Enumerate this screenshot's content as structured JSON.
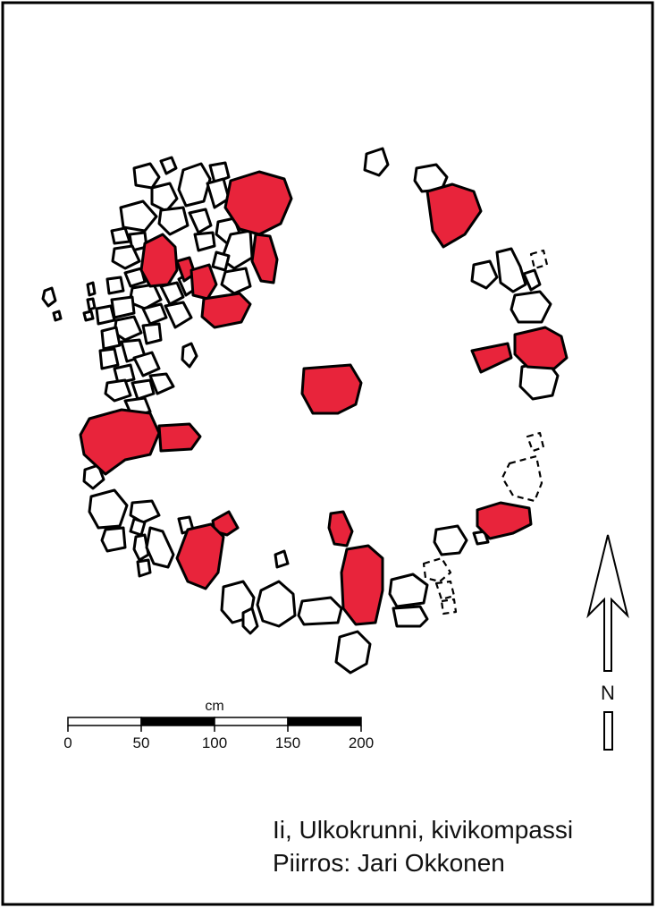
{
  "scale_bar": {
    "unit": "cm",
    "ticks": [
      "0",
      "50",
      "100",
      "150",
      "200"
    ]
  },
  "north_label": "N",
  "caption": {
    "line1": "Ii, Ulkokrunni, kivikompassi",
    "line2": "Piirros: Jari Okkonen"
  },
  "colors": {
    "highlight_stone": "#e8243b",
    "outline": "#000000",
    "background": "#ffffff"
  }
}
